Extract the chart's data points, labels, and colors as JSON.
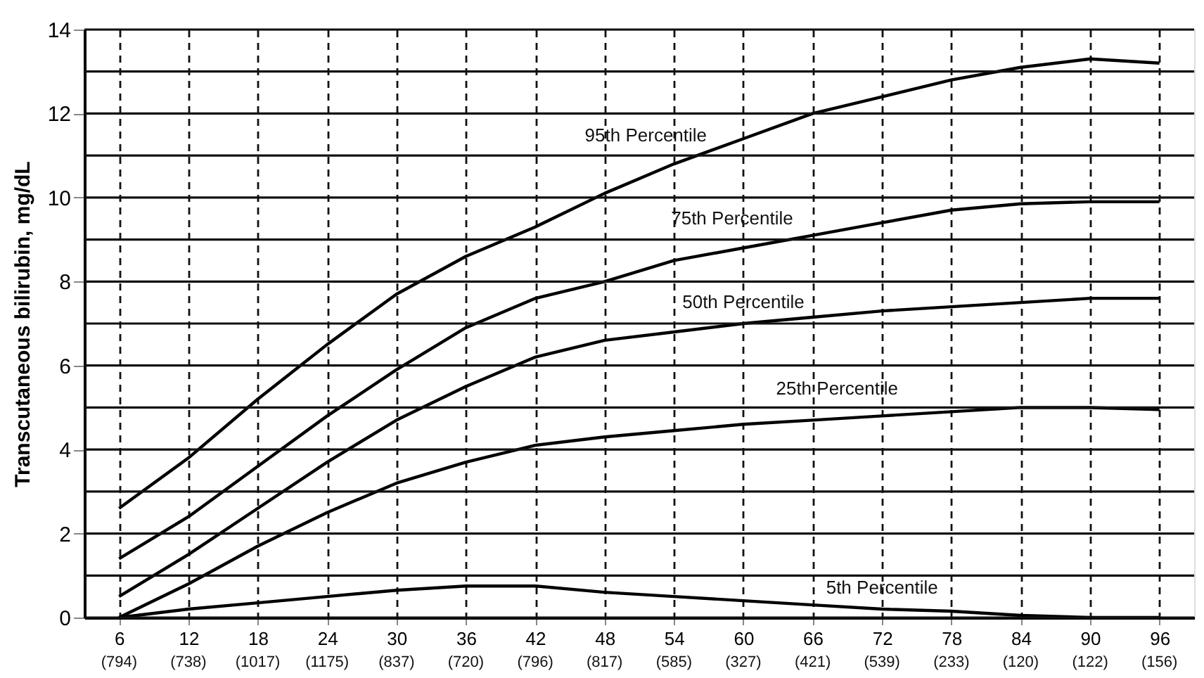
{
  "chart_data": {
    "type": "line",
    "ylabel": "Transcutaneous bilirubin, mg/dL",
    "x": [
      6,
      12,
      18,
      24,
      30,
      36,
      42,
      48,
      54,
      60,
      66,
      72,
      78,
      84,
      90,
      96
    ],
    "series": [
      {
        "name": "95th Percentile",
        "color": "#000000",
        "values": [
          2.6,
          3.8,
          5.2,
          6.5,
          7.7,
          8.6,
          9.3,
          10.1,
          10.8,
          11.4,
          12.0,
          12.4,
          12.8,
          13.1,
          13.3,
          13.2
        ]
      },
      {
        "name": "75th Percentile",
        "color": "#000000",
        "values": [
          1.4,
          2.4,
          3.6,
          4.8,
          5.9,
          6.9,
          7.6,
          8.0,
          8.5,
          8.8,
          9.1,
          9.4,
          9.7,
          9.85,
          9.9,
          9.9
        ]
      },
      {
        "name": "50th Percentile",
        "color": "#000000",
        "values": [
          0.5,
          1.5,
          2.6,
          3.7,
          4.7,
          5.5,
          6.2,
          6.6,
          6.8,
          7.0,
          7.15,
          7.3,
          7.4,
          7.5,
          7.6,
          7.6
        ]
      },
      {
        "name": "25th Percentile",
        "color": "#000000",
        "values": [
          0,
          0.8,
          1.7,
          2.5,
          3.2,
          3.7,
          4.1,
          4.3,
          4.45,
          4.6,
          4.7,
          4.8,
          4.9,
          5.0,
          5.0,
          4.95
        ]
      },
      {
        "name": "5th Percentile",
        "color": "#000000",
        "values": [
          0,
          0.2,
          0.35,
          0.5,
          0.65,
          0.75,
          0.75,
          0.6,
          0.5,
          0.4,
          0.3,
          0.2,
          0.15,
          0.05,
          0,
          0
        ]
      }
    ],
    "xlim": [
      3,
      99
    ],
    "xticks": [
      6,
      12,
      18,
      24,
      30,
      36,
      42,
      48,
      54,
      60,
      66,
      72,
      78,
      84,
      90,
      96
    ],
    "annotations": [
      "(794)",
      "(738)",
      "(1017)",
      "(1175)",
      "(837)",
      "(720)",
      "(796)",
      "(817)",
      "(585)",
      "(327)",
      "(421)",
      "(539)",
      "(233)",
      "(120)",
      "(122)",
      "(156)"
    ],
    "ylim": [
      0,
      14
    ],
    "yticks": [
      0,
      {
        "value": 1,
        "label": null
      },
      2,
      {
        "value": 3,
        "label": null
      },
      4,
      {
        "value": 5,
        "label": null
      },
      6,
      {
        "value": 7,
        "label": null
      },
      8,
      {
        "value": 9,
        "label": null
      },
      10,
      {
        "value": 11,
        "label": null
      },
      12,
      {
        "value": 13,
        "label": null
      },
      14
    ],
    "grid": true,
    "legend": false,
    "marker": "none",
    "line_style": "solid"
  }
}
